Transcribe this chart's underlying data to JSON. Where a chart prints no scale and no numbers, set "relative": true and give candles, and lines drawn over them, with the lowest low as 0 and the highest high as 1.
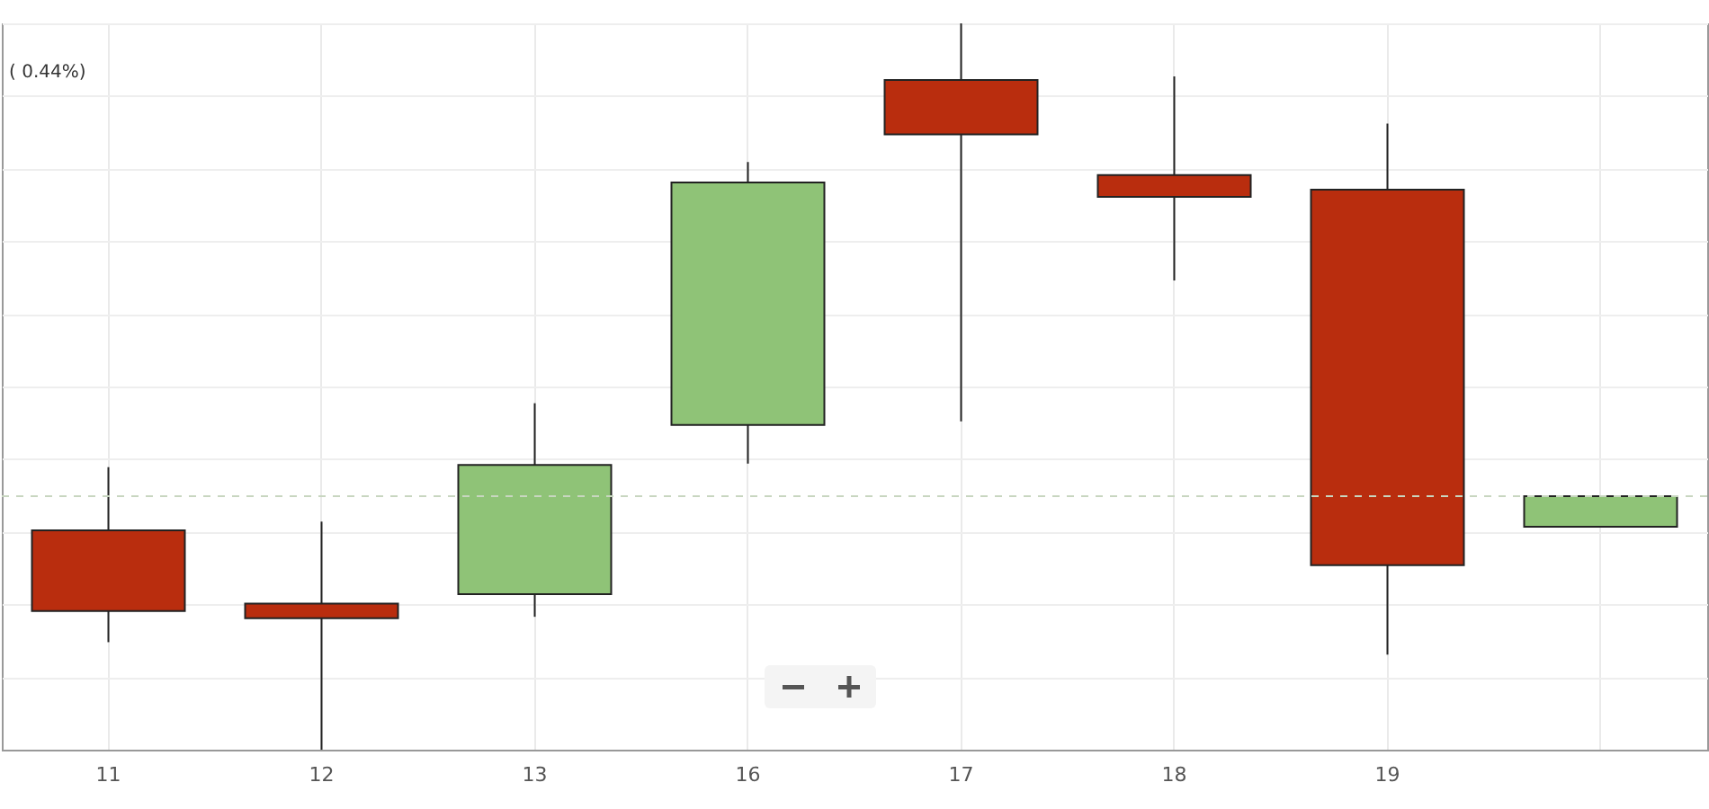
{
  "chart_data": {
    "type": "candlestick",
    "relative": true,
    "categories": [
      "11",
      "12",
      "13",
      "16",
      "17",
      "18",
      "19",
      null
    ],
    "ohlc": [
      [
        0.302,
        0.389,
        0.148,
        0.191
      ],
      [
        0.201,
        0.314,
        0,
        0.181
      ],
      [
        0.214,
        0.477,
        0.183,
        0.392
      ],
      [
        0.447,
        0.809,
        0.394,
        0.781
      ],
      [
        0.922,
        1,
        0.452,
        0.847
      ],
      [
        0.791,
        0.927,
        0.646,
        0.761
      ],
      [
        0.771,
        0.862,
        0.131,
        0.254
      ],
      [
        0.307,
        0.349,
        0.307,
        0.349
      ]
    ],
    "colors": [
      "#b92d0e",
      "#b92d0e",
      "#8fc377",
      "#8fc377",
      "#b92d0e",
      "#b92d0e",
      "#b92d0e",
      "#8fc377"
    ],
    "ref_lines": [
      {
        "axis": "y",
        "value": 0.349,
        "color": "#c8d6c0",
        "line_style": "dashed"
      }
    ],
    "annotations": [
      "( 0.44%)"
    ],
    "grid": true
  }
}
